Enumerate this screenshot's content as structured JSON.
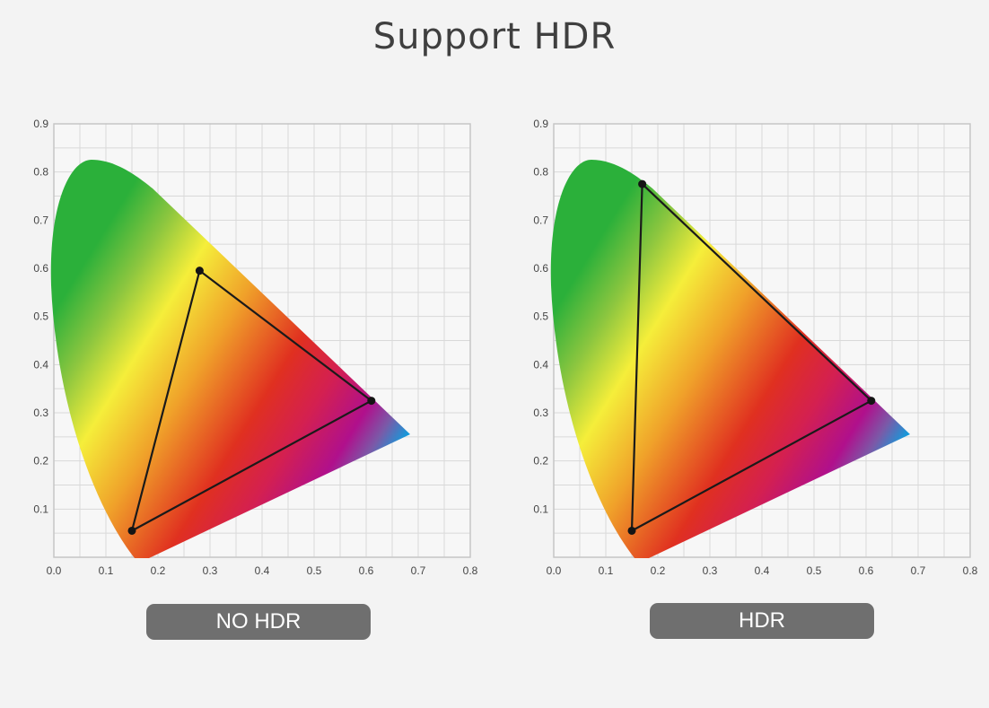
{
  "title": "Support HDR",
  "chart_data": [
    {
      "type": "scatter",
      "title": "",
      "label": "NO HDR",
      "xlim": [
        0,
        0.8
      ],
      "ylim": [
        0,
        0.9
      ],
      "x_ticks": [
        "0.0",
        "0.1",
        "0.2",
        "0.3",
        "0.4",
        "0.5",
        "0.6",
        "0.7",
        "0.8"
      ],
      "y_ticks": [
        "0.1",
        "0.2",
        "0.3",
        "0.4",
        "0.5",
        "0.6",
        "0.7",
        "0.8",
        "0.9"
      ],
      "grid": true,
      "gamut_triangle": [
        {
          "x": 0.28,
          "y": 0.595
        },
        {
          "x": 0.61,
          "y": 0.325
        },
        {
          "x": 0.15,
          "y": 0.055
        }
      ]
    },
    {
      "type": "scatter",
      "title": "",
      "label": "HDR",
      "xlim": [
        0,
        0.8
      ],
      "ylim": [
        0,
        0.9
      ],
      "x_ticks": [
        "0.0",
        "0.1",
        "0.2",
        "0.3",
        "0.4",
        "0.5",
        "0.6",
        "0.7",
        "0.8"
      ],
      "y_ticks": [
        "0.1",
        "0.2",
        "0.3",
        "0.4",
        "0.5",
        "0.6",
        "0.7",
        "0.8",
        "0.9"
      ],
      "grid": true,
      "gamut_triangle": [
        {
          "x": 0.17,
          "y": 0.775
        },
        {
          "x": 0.61,
          "y": 0.325
        },
        {
          "x": 0.15,
          "y": 0.055
        }
      ]
    }
  ],
  "colors": {
    "background": "#f3f3f3",
    "label_pill": "#6f6f6f",
    "grid": "#d9d9d9",
    "spectrum": [
      "#2bb03a",
      "#8cc63f",
      "#f5ee3a",
      "#f0a22a",
      "#e03020",
      "#d42050",
      "#b0108c",
      "#7a5aa8",
      "#0aa0e0"
    ]
  }
}
